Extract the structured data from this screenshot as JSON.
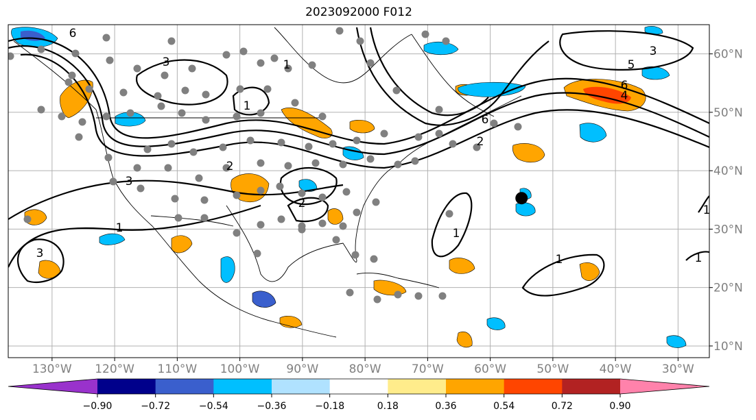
{
  "title": "2023092000 F012",
  "map": {
    "lat_labels": [
      "60°N",
      "50°N",
      "40°N",
      "30°N",
      "20°N",
      "10°N"
    ],
    "lat_values": [
      60,
      50,
      40,
      30,
      20,
      10
    ],
    "lon_labels": [
      "130°W",
      "120°W",
      "110°W",
      "100°W",
      "90°W",
      "80°W",
      "70°W",
      "60°W",
      "50°W",
      "40°W",
      "30°W"
    ],
    "lon_values": [
      -130,
      -120,
      -110,
      -100,
      -90,
      -80,
      -70,
      -60,
      -50,
      -40,
      -30
    ],
    "extent": {
      "lon_min": -137,
      "lon_max": -25,
      "lat_min": 8,
      "lat_max": 65
    },
    "contour_labels": [
      "6",
      "3",
      "1",
      "2",
      "6",
      "3",
      "5",
      "6",
      "4",
      "3",
      "2",
      "1",
      "1",
      "1",
      "1",
      "1",
      "2",
      "3",
      "1"
    ],
    "marker_lon": -55,
    "marker_lat": 35.3
  },
  "colorbar": {
    "ticks": [
      "−0.90",
      "−0.72",
      "−0.54",
      "−0.36",
      "−0.18",
      "0.18",
      "0.36",
      "0.54",
      "0.72",
      "0.90"
    ],
    "colors": [
      "#9932cc",
      "#00008b",
      "#3a5fcd",
      "#00bfff",
      "#b0e2ff",
      "#ffffff",
      "#ffec8b",
      "#ffa500",
      "#ff4500",
      "#b22222",
      "#ff82ab"
    ]
  }
}
